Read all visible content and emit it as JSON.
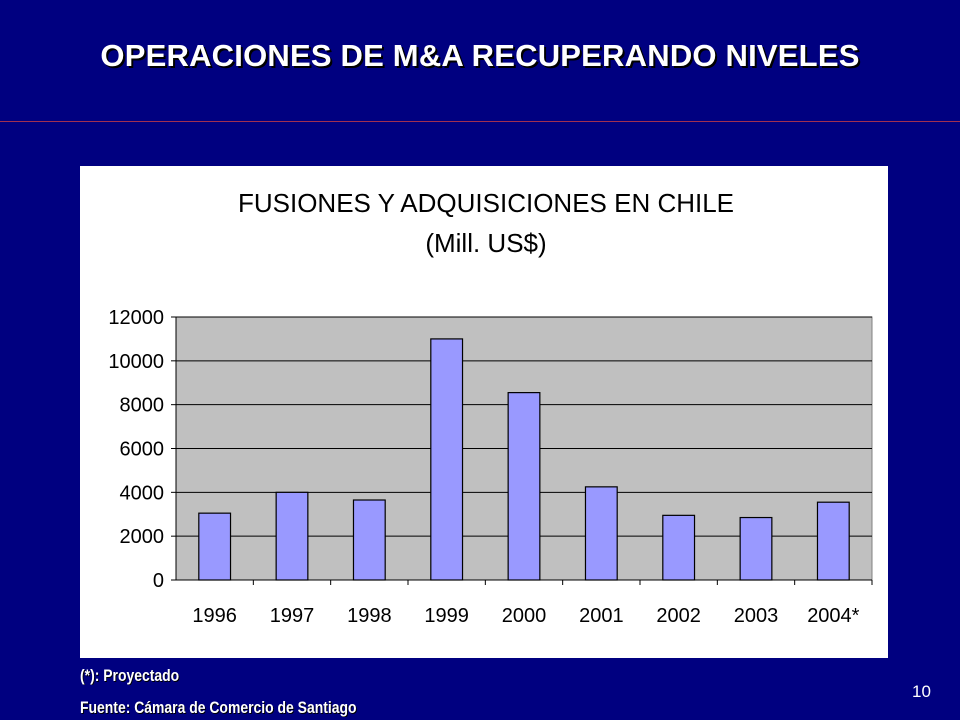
{
  "slide": {
    "title": "OPERACIONES  DE M&A RECUPERANDO NIVELES",
    "page_number": "10"
  },
  "footnotes": {
    "projected": "(*): Proyectado",
    "source": "Fuente: Cámara de Comercio de Santiago"
  },
  "colors": {
    "background": "#000080",
    "plot_area": "#c0c0c0",
    "bar_fill": "#9999ff"
  },
  "chart_data": {
    "type": "bar",
    "title": "FUSIONES Y ADQUISICIONES EN CHILE",
    "subtitle": "(Mill. US$)",
    "categories": [
      "1996",
      "1997",
      "1998",
      "1999",
      "2000",
      "2001",
      "2002",
      "2003",
      "2004*"
    ],
    "values": [
      3050,
      4000,
      3650,
      11000,
      8550,
      4250,
      2950,
      2850,
      3550
    ],
    "ylim": [
      0,
      12000
    ],
    "yticks": [
      0,
      2000,
      4000,
      6000,
      8000,
      10000,
      12000
    ],
    "grid": true,
    "legend": "none"
  }
}
